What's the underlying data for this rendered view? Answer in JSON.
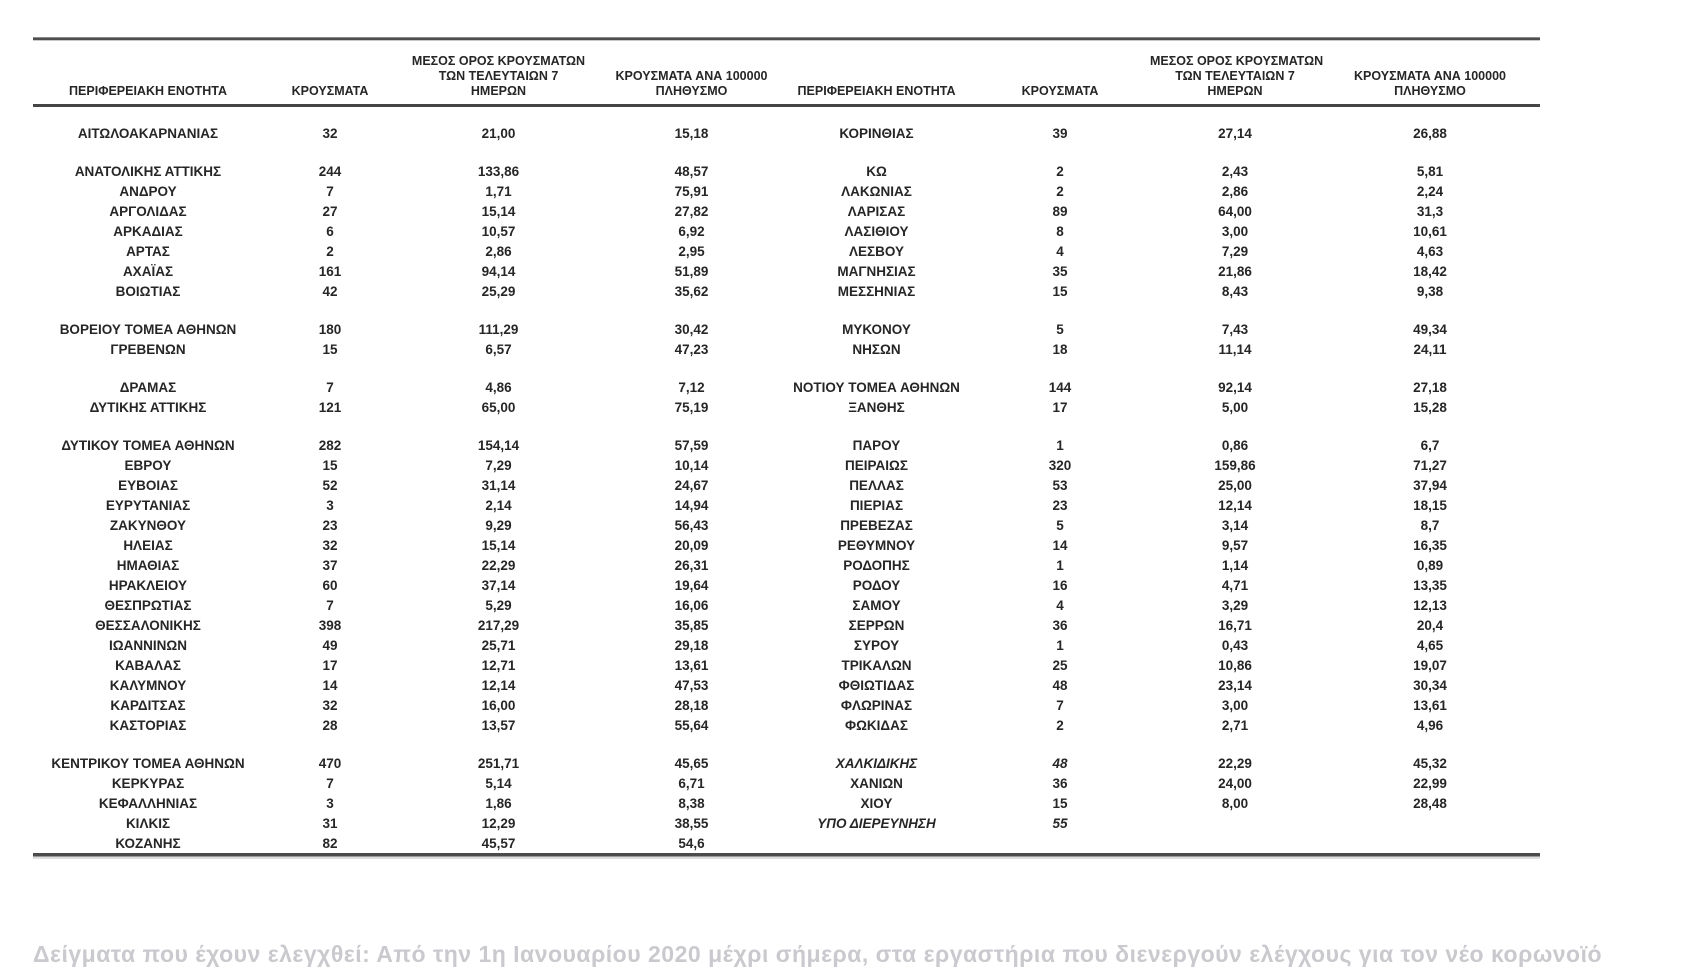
{
  "header": {
    "col_region": "ΠΕΡΙΦΕΡΕΙΑΚΗ ΕΝΟΤΗΤΑ",
    "col_cases": "ΚΡΟΥΣΜΑΤΑ",
    "col_avg7_lines": [
      "ΜΕΣΟΣ ΟΡΟΣ ΚΡΟΥΣΜΑΤΩΝ",
      "ΤΩΝ ΤΕΛΕΥΤΑΙΩΝ 7",
      "ΗΜΕΡΩΝ"
    ],
    "col_per100k_lines": [
      "ΚΡΟΥΣΜΑΤΑ ΑΝΑ 100000",
      "ΠΛΗΘΥΣΜΟ"
    ]
  },
  "rows": [
    {
      "gap": false,
      "l": [
        "ΑΙΤΩΛΟΑΚΑΡΝΑΝΙΑΣ",
        "32",
        "21,00",
        "15,18"
      ],
      "r": [
        "ΚΟΡΙΝΘΙΑΣ",
        "39",
        "27,14",
        "26,88"
      ]
    },
    {
      "gap": true,
      "l": [
        "ΑΝΑΤΟΛΙΚΗΣ ΑΤΤΙΚΗΣ",
        "244",
        "133,86",
        "48,57"
      ],
      "r": [
        "ΚΩ",
        "2",
        "2,43",
        "5,81"
      ]
    },
    {
      "gap": false,
      "l": [
        "ΑΝΔΡΟΥ",
        "7",
        "1,71",
        "75,91"
      ],
      "r": [
        "ΛΑΚΩΝΙΑΣ",
        "2",
        "2,86",
        "2,24"
      ]
    },
    {
      "gap": false,
      "l": [
        "ΑΡΓΟΛΙΔΑΣ",
        "27",
        "15,14",
        "27,82"
      ],
      "r": [
        "ΛΑΡΙΣΑΣ",
        "89",
        "64,00",
        "31,3"
      ]
    },
    {
      "gap": false,
      "l": [
        "ΑΡΚΑΔΙΑΣ",
        "6",
        "10,57",
        "6,92"
      ],
      "r": [
        "ΛΑΣΙΘΙΟΥ",
        "8",
        "3,00",
        "10,61"
      ]
    },
    {
      "gap": false,
      "l": [
        "ΑΡΤΑΣ",
        "2",
        "2,86",
        "2,95"
      ],
      "r": [
        "ΛΕΣΒΟΥ",
        "4",
        "7,29",
        "4,63"
      ]
    },
    {
      "gap": false,
      "l": [
        "ΑΧΑΪΑΣ",
        "161",
        "94,14",
        "51,89"
      ],
      "r": [
        "ΜΑΓΝΗΣΙΑΣ",
        "35",
        "21,86",
        "18,42"
      ]
    },
    {
      "gap": false,
      "l": [
        "ΒΟΙΩΤΙΑΣ",
        "42",
        "25,29",
        "35,62"
      ],
      "r": [
        "ΜΕΣΣΗΝΙΑΣ",
        "15",
        "8,43",
        "9,38"
      ]
    },
    {
      "gap": true,
      "l": [
        "ΒΟΡΕΙΟΥ ΤΟΜΕΑ ΑΘΗΝΩΝ",
        "180",
        "111,29",
        "30,42"
      ],
      "r": [
        "ΜΥΚΟΝΟΥ",
        "5",
        "7,43",
        "49,34"
      ]
    },
    {
      "gap": false,
      "l": [
        "ΓΡΕΒΕΝΩΝ",
        "15",
        "6,57",
        "47,23"
      ],
      "r": [
        "ΝΗΣΩΝ",
        "18",
        "11,14",
        "24,11"
      ]
    },
    {
      "gap": true,
      "l": [
        "ΔΡΑΜΑΣ",
        "7",
        "4,86",
        "7,12"
      ],
      "r": [
        "ΝΟΤΙΟΥ ΤΟΜΕΑ ΑΘΗΝΩΝ",
        "144",
        "92,14",
        "27,18"
      ]
    },
    {
      "gap": false,
      "l": [
        "ΔΥΤΙΚΗΣ ΑΤΤΙΚΗΣ",
        "121",
        "65,00",
        "75,19"
      ],
      "r": [
        "ΞΑΝΘΗΣ",
        "17",
        "5,00",
        "15,28"
      ]
    },
    {
      "gap": true,
      "l": [
        "ΔΥΤΙΚΟΥ ΤΟΜΕΑ ΑΘΗΝΩΝ",
        "282",
        "154,14",
        "57,59"
      ],
      "r": [
        "ΠΑΡΟΥ",
        "1",
        "0,86",
        "6,7"
      ]
    },
    {
      "gap": false,
      "l": [
        "ΕΒΡΟΥ",
        "15",
        "7,29",
        "10,14"
      ],
      "r": [
        "ΠΕΙΡΑΙΩΣ",
        "320",
        "159,86",
        "71,27"
      ]
    },
    {
      "gap": false,
      "l": [
        "ΕΥΒΟΙΑΣ",
        "52",
        "31,14",
        "24,67"
      ],
      "r": [
        "ΠΕΛΛΑΣ",
        "53",
        "25,00",
        "37,94"
      ]
    },
    {
      "gap": false,
      "l": [
        "ΕΥΡΥΤΑΝΙΑΣ",
        "3",
        "2,14",
        "14,94"
      ],
      "r": [
        "ΠΙΕΡΙΑΣ",
        "23",
        "12,14",
        "18,15"
      ]
    },
    {
      "gap": false,
      "l": [
        "ΖΑΚΥΝΘΟΥ",
        "23",
        "9,29",
        "56,43"
      ],
      "r": [
        "ΠΡΕΒΕΖΑΣ",
        "5",
        "3,14",
        "8,7"
      ]
    },
    {
      "gap": false,
      "l": [
        "ΗΛΕΙΑΣ",
        "32",
        "15,14",
        "20,09"
      ],
      "r": [
        "ΡΕΘΥΜΝΟΥ",
        "14",
        "9,57",
        "16,35"
      ]
    },
    {
      "gap": false,
      "l": [
        "ΗΜΑΘΙΑΣ",
        "37",
        "22,29",
        "26,31"
      ],
      "r": [
        "ΡΟΔΟΠΗΣ",
        "1",
        "1,14",
        "0,89"
      ]
    },
    {
      "gap": false,
      "l": [
        "ΗΡΑΚΛΕΙΟΥ",
        "60",
        "37,14",
        "19,64"
      ],
      "r": [
        "ΡΟΔΟΥ",
        "16",
        "4,71",
        "13,35"
      ]
    },
    {
      "gap": false,
      "l": [
        "ΘΕΣΠΡΩΤΙΑΣ",
        "7",
        "5,29",
        "16,06"
      ],
      "r": [
        "ΣΑΜΟΥ",
        "4",
        "3,29",
        "12,13"
      ]
    },
    {
      "gap": false,
      "l": [
        "ΘΕΣΣΑΛΟΝΙΚΗΣ",
        "398",
        "217,29",
        "35,85"
      ],
      "r": [
        "ΣΕΡΡΩΝ",
        "36",
        "16,71",
        "20,4"
      ]
    },
    {
      "gap": false,
      "l": [
        "ΙΩΑΝΝΙΝΩΝ",
        "49",
        "25,71",
        "29,18"
      ],
      "r": [
        "ΣΥΡΟΥ",
        "1",
        "0,43",
        "4,65"
      ]
    },
    {
      "gap": false,
      "l": [
        "ΚΑΒΑΛΑΣ",
        "17",
        "12,71",
        "13,61"
      ],
      "r": [
        "ΤΡΙΚΑΛΩΝ",
        "25",
        "10,86",
        "19,07"
      ]
    },
    {
      "gap": false,
      "l": [
        "ΚΑΛΥΜΝΟΥ",
        "14",
        "12,14",
        "47,53"
      ],
      "r": [
        "ΦΘΙΩΤΙΔΑΣ",
        "48",
        "23,14",
        "30,34"
      ]
    },
    {
      "gap": false,
      "l": [
        "ΚΑΡΔΙΤΣΑΣ",
        "32",
        "16,00",
        "28,18"
      ],
      "r": [
        "ΦΛΩΡΙΝΑΣ",
        "7",
        "3,00",
        "13,61"
      ]
    },
    {
      "gap": false,
      "l": [
        "ΚΑΣΤΟΡΙΑΣ",
        "28",
        "13,57",
        "55,64"
      ],
      "r": [
        "ΦΩΚΙΔΑΣ",
        "2",
        "2,71",
        "4,96"
      ]
    },
    {
      "gap": true,
      "l": [
        "ΚΕΝΤΡΙΚΟΥ ΤΟΜΕΑ ΑΘΗΝΩΝ",
        "470",
        "251,71",
        "45,65"
      ],
      "r": [
        "ΧΑΛΚΙΔΙΚΗΣ",
        "48",
        "22,29",
        "45,32"
      ],
      "ri": true
    },
    {
      "gap": false,
      "l": [
        "ΚΕΡΚΥΡΑΣ",
        "7",
        "5,14",
        "6,71"
      ],
      "r": [
        "ΧΑΝΙΩΝ",
        "36",
        "24,00",
        "22,99"
      ]
    },
    {
      "gap": false,
      "l": [
        "ΚΕΦΑΛΛΗΝΙΑΣ",
        "3",
        "1,86",
        "8,38"
      ],
      "r": [
        "ΧΙΟΥ",
        "15",
        "8,00",
        "28,48"
      ]
    },
    {
      "gap": false,
      "l": [
        "ΚΙΛΚΙΣ",
        "31",
        "12,29",
        "38,55"
      ],
      "r": [
        "ΥΠΟ ΔΙΕΡΕΥΝΗΣΗ",
        "55",
        "",
        ""
      ],
      "ri": true
    },
    {
      "gap": false,
      "l": [
        "ΚΟΖΑΝΗΣ",
        "82",
        "45,57",
        "54,6"
      ],
      "r": [
        "",
        "",
        "",
        ""
      ]
    }
  ],
  "footer_note": "Δείγματα που έχουν ελεγχθεί: Από την 1η Ιανουαρίου 2020 μέχρι σήμερα, στα εργαστήρια που διενεργούν ελέγχους για τον νέο κορωνοϊό",
  "colors": {
    "text": "#262626",
    "rule_dark": "#4b4b4b",
    "rule_light": "#c9c9c9",
    "footer_text": "#c9c9ce"
  }
}
